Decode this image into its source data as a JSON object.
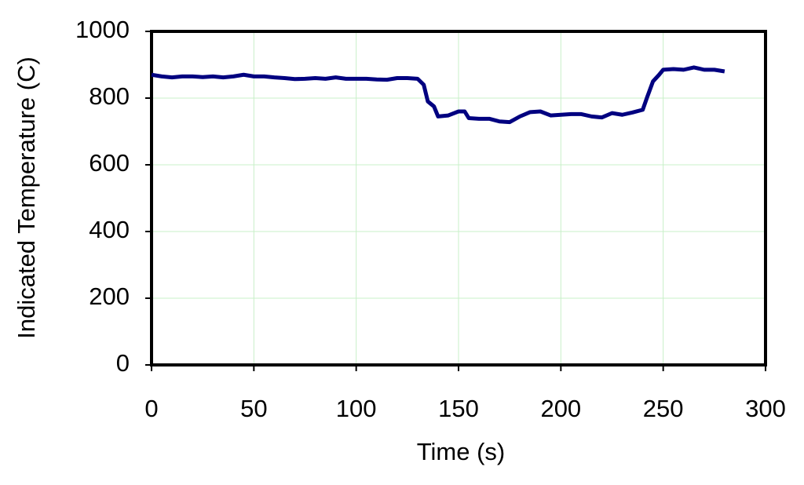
{
  "chart_data": {
    "type": "line",
    "x_label": "Time (s)",
    "y_label": "Indicated Temperature (C)",
    "xlim": [
      0,
      300
    ],
    "xticks": [
      0,
      50,
      100,
      150,
      200,
      250,
      300
    ],
    "ylim": [
      0,
      1000
    ],
    "yticks": [
      0,
      200,
      400,
      600,
      800,
      1000
    ],
    "grid": true,
    "grid_color": "#c8f0c8",
    "series": [
      {
        "color": "#000080",
        "x": [
          0,
          5,
          10,
          15,
          20,
          25,
          30,
          35,
          40,
          45,
          50,
          55,
          60,
          65,
          70,
          75,
          80,
          85,
          90,
          95,
          100,
          105,
          110,
          115,
          120,
          125,
          130,
          133,
          135,
          138,
          140,
          145,
          150,
          153,
          155,
          160,
          165,
          170,
          175,
          180,
          185,
          190,
          195,
          200,
          205,
          210,
          215,
          220,
          225,
          230,
          235,
          240,
          242,
          245,
          248,
          250,
          255,
          260,
          265,
          270,
          275,
          280
        ],
        "values": [
          870,
          865,
          862,
          865,
          865,
          863,
          865,
          862,
          865,
          870,
          865,
          865,
          862,
          860,
          857,
          858,
          860,
          858,
          862,
          858,
          858,
          858,
          856,
          855,
          860,
          860,
          858,
          840,
          790,
          775,
          745,
          748,
          760,
          760,
          740,
          738,
          738,
          730,
          728,
          745,
          758,
          760,
          748,
          750,
          752,
          752,
          745,
          742,
          755,
          750,
          757,
          765,
          800,
          850,
          870,
          885,
          887,
          885,
          892,
          885,
          885,
          880
        ]
      }
    ]
  }
}
